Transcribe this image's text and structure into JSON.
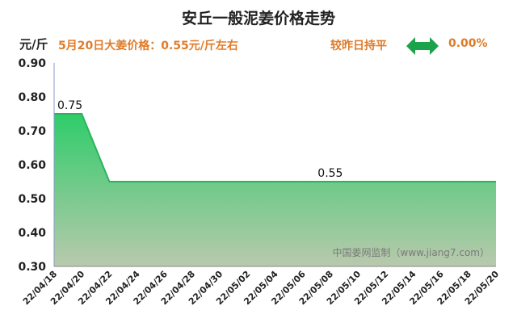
{
  "header": {
    "title": "安丘一般泥姜价格走势",
    "y_unit": "元/斤",
    "price_info": "5月20日大姜价格：0.55元/斤左右",
    "compare_label": "较昨日持平",
    "compare_icon": "double-arrow-icon",
    "compare_value": "0.00%"
  },
  "watermark": "中国姜网监制（www.jiang7.com）",
  "colors": {
    "accent": "#e07b27",
    "line": "#2db35a",
    "fill_top": "#2fcc6a",
    "fill_bottom": "#b9c9ad",
    "arrow": "#1aa34a"
  },
  "chart_data": {
    "type": "area",
    "title": "安丘一般泥姜价格走势",
    "ylabel": "元/斤",
    "xlabel": "",
    "x": [
      "22/04/18",
      "22/04/20",
      "22/04/22",
      "22/05/20"
    ],
    "values": [
      0.75,
      0.75,
      0.55,
      0.55
    ],
    "x_ticks": [
      "22/04/18",
      "22/04/20",
      "22/04/22",
      "22/04/24",
      "22/04/26",
      "22/04/28",
      "22/04/30",
      "22/05/02",
      "22/05/04",
      "22/05/06",
      "22/05/08",
      "22/05/10",
      "22/05/12",
      "22/05/14",
      "22/05/16",
      "22/05/18",
      "22/05/20"
    ],
    "y_ticks": [
      "0.30",
      "0.40",
      "0.50",
      "0.60",
      "0.70",
      "0.80",
      "0.90"
    ],
    "ylim": [
      0.3,
      0.9
    ],
    "xlim": [
      "22/04/18",
      "22/05/20"
    ],
    "annotations": [
      {
        "x": "22/04/18",
        "text": "0.75"
      },
      {
        "x": "22/05/08",
        "text": "0.55"
      }
    ],
    "grid": false,
    "legend": "none"
  }
}
